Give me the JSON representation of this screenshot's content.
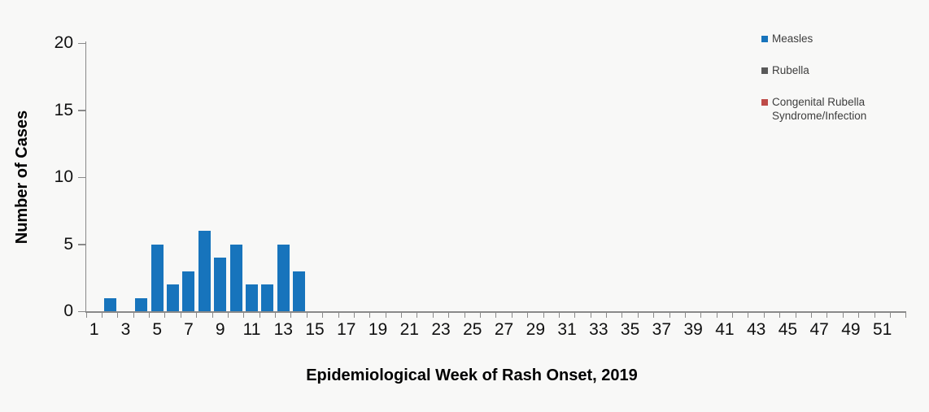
{
  "chart_data": {
    "type": "bar",
    "title": "",
    "xlabel": "Epidemiological Week of Rash Onset, 2019",
    "ylabel": "Number of Cases",
    "weeks": 52,
    "x_label_ticks": [
      "1",
      "3",
      "5",
      "7",
      "9",
      "11",
      "13",
      "15",
      "17",
      "19",
      "21",
      "23",
      "25",
      "27",
      "29",
      "31",
      "33",
      "35",
      "37",
      "39",
      "41",
      "43",
      "45",
      "47",
      "49",
      "51"
    ],
    "yticks": [
      0,
      5,
      10,
      15,
      20
    ],
    "ylim": [
      0,
      20
    ],
    "grid": false,
    "legend_position": "top-right",
    "series": [
      {
        "name": "Measles",
        "color": "#1774bc",
        "values": [
          0,
          1,
          0,
          1,
          5,
          2,
          3,
          6,
          4,
          5,
          2,
          2,
          5,
          3,
          0,
          0,
          0,
          0,
          0,
          0,
          0,
          0,
          0,
          0,
          0,
          0,
          0,
          0,
          0,
          0,
          0,
          0,
          0,
          0,
          0,
          0,
          0,
          0,
          0,
          0,
          0,
          0,
          0,
          0,
          0,
          0,
          0,
          0,
          0,
          0,
          0,
          0
        ]
      },
      {
        "name": "Rubella",
        "color": "#595959",
        "values": [
          0,
          0,
          0,
          0,
          0,
          0,
          0,
          0,
          0,
          0,
          0,
          0,
          0,
          0,
          0,
          0,
          0,
          0,
          0,
          0,
          0,
          0,
          0,
          0,
          0,
          0,
          0,
          0,
          0,
          0,
          0,
          0,
          0,
          0,
          0,
          0,
          0,
          0,
          0,
          0,
          0,
          0,
          0,
          0,
          0,
          0,
          0,
          0,
          0,
          0,
          0,
          0
        ]
      },
      {
        "name": "Congenital Rubella Syndrome/Infection",
        "color": "#be4b48",
        "values": [
          0,
          0,
          0,
          0,
          0,
          0,
          0,
          0,
          0,
          0,
          0,
          0,
          0,
          0,
          0,
          0,
          0,
          0,
          0,
          0,
          0,
          0,
          0,
          0,
          0,
          0,
          0,
          0,
          0,
          0,
          0,
          0,
          0,
          0,
          0,
          0,
          0,
          0,
          0,
          0,
          0,
          0,
          0,
          0,
          0,
          0,
          0,
          0,
          0,
          0,
          0,
          0
        ]
      }
    ],
    "axis_color": "#898989",
    "background_color": "#f8f8f7"
  }
}
